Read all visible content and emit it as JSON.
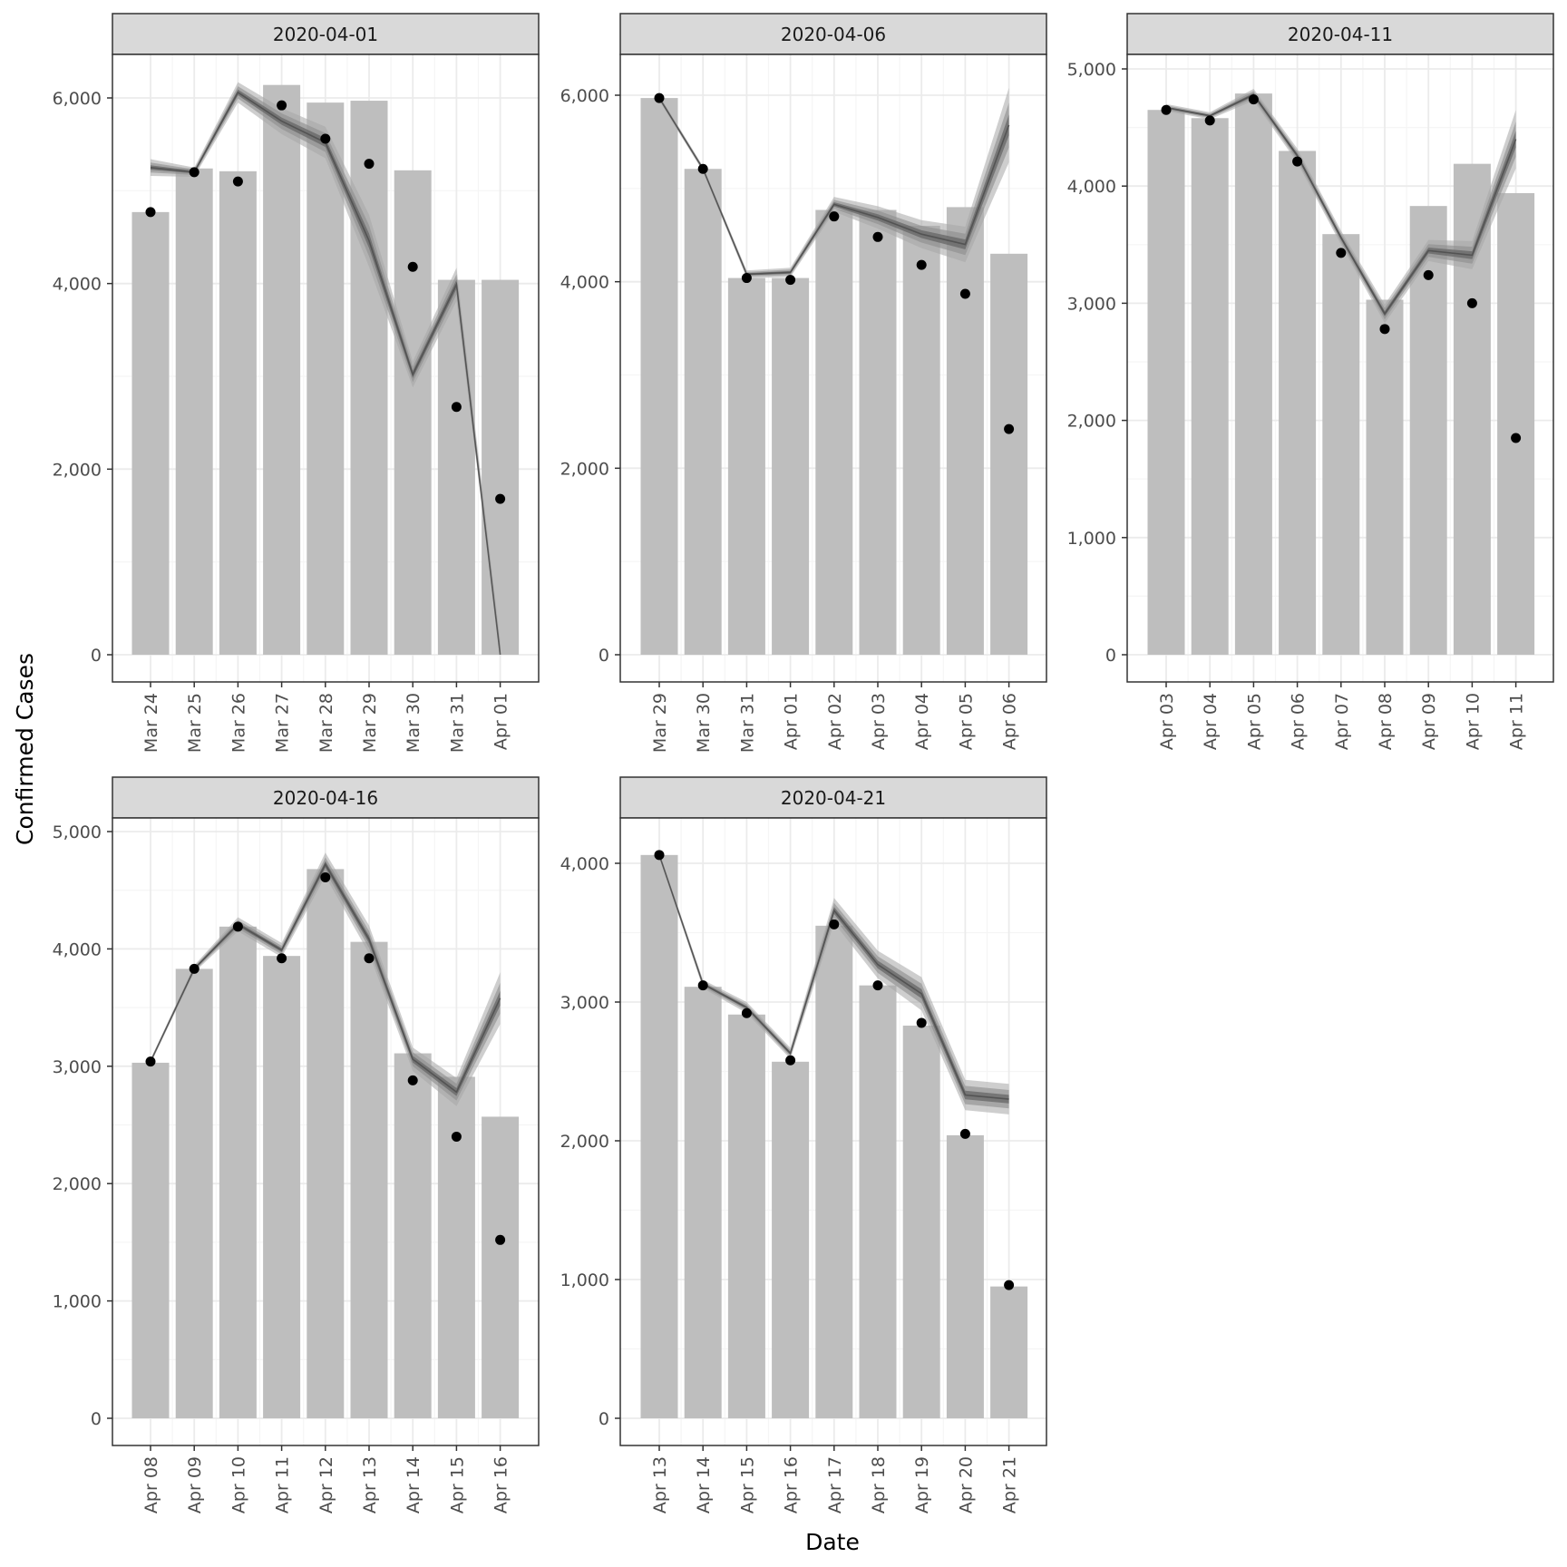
{
  "colors": {
    "bar": "#bebebe",
    "point": "#000000",
    "line": "#4d4d4d",
    "band_outer": "#a6a6a6",
    "band_mid": "#8c8c8c",
    "band_inner": "#666666",
    "strip_fill": "#d9d9d9",
    "grid_major": "#ebebeb",
    "grid_minor": "#f5f5f5",
    "panel_border": "#333333"
  },
  "chart_data": {
    "type": "bar",
    "xlabel": "Date",
    "ylabel": "Confirmed Cases",
    "layout": "facet-grid 3 columns",
    "legend": "none",
    "grid": true,
    "panels": [
      {
        "strip": "2020-04-01",
        "ylim": [
          0,
          6500
        ],
        "yticks": [
          0,
          2000,
          4000,
          6000
        ],
        "ytick_labels": [
          "0",
          "2,000",
          "4,000",
          "6,000"
        ],
        "categories": [
          "Mar 24",
          "Mar 25",
          "Mar 26",
          "Mar 27",
          "Mar 28",
          "Mar 29",
          "Mar 30",
          "Mar 31",
          "Apr 01"
        ],
        "bars": [
          4770,
          5240,
          5210,
          6140,
          5950,
          5970,
          5220,
          4040,
          4040
        ],
        "points": [
          4770,
          5200,
          5100,
          5920,
          5560,
          5290,
          4180,
          2670,
          1680
        ],
        "line": [
          5250,
          5200,
          6060,
          5750,
          5520,
          4460,
          3020,
          3990,
          0
        ],
        "band": [
          90,
          50,
          110,
          140,
          170,
          280,
          140,
          180,
          150
        ]
      },
      {
        "strip": "2020-04-06",
        "ylim": [
          0,
          6400
        ],
        "yticks": [
          0,
          2000,
          4000,
          6000
        ],
        "ytick_labels": [
          "0",
          "2,000",
          "4,000",
          "6,000"
        ],
        "categories": [
          "Mar 29",
          "Mar 30",
          "Mar 31",
          "Apr 01",
          "Apr 02",
          "Apr 03",
          "Apr 04",
          "Apr 05",
          "Apr 06"
        ],
        "bars": [
          5970,
          5210,
          4040,
          4040,
          4770,
          4770,
          4600,
          4800,
          4300
        ],
        "points": [
          5970,
          5210,
          4040,
          4020,
          4700,
          4480,
          4180,
          3870,
          2420
        ],
        "line": [
          5970,
          5210,
          4080,
          4100,
          4830,
          4690,
          4510,
          4400,
          5680
        ],
        "band": [
          30,
          30,
          40,
          50,
          80,
          120,
          150,
          190,
          400
        ]
      },
      {
        "strip": "2020-04-11",
        "ylim": [
          0,
          5100
        ],
        "yticks": [
          0,
          1000,
          2000,
          3000,
          4000,
          5000
        ],
        "ytick_labels": [
          "0",
          "1,000",
          "2,000",
          "3,000",
          "4,000",
          "5,000"
        ],
        "categories": [
          "Apr 03",
          "Apr 04",
          "Apr 05",
          "Apr 06",
          "Apr 07",
          "Apr 08",
          "Apr 09",
          "Apr 10",
          "Apr 11"
        ],
        "bars": [
          4650,
          4580,
          4790,
          4300,
          3590,
          3030,
          3830,
          4190,
          3940
        ],
        "points": [
          4650,
          4560,
          4740,
          4210,
          3430,
          2780,
          3240,
          3000,
          1850
        ],
        "line": [
          4670,
          4600,
          4780,
          4260,
          3560,
          2910,
          3450,
          3410,
          4400
        ],
        "band": [
          30,
          30,
          50,
          60,
          60,
          80,
          90,
          120,
          250
        ]
      },
      {
        "strip": "2020-04-16",
        "ylim": [
          0,
          5100
        ],
        "yticks": [
          0,
          1000,
          2000,
          3000,
          4000,
          5000
        ],
        "ytick_labels": [
          "0",
          "1,000",
          "2,000",
          "3,000",
          "4,000",
          "5,000"
        ],
        "categories": [
          "Apr 08",
          "Apr 09",
          "Apr 10",
          "Apr 11",
          "Apr 12",
          "Apr 13",
          "Apr 14",
          "Apr 15",
          "Apr 16"
        ],
        "bars": [
          3030,
          3830,
          4190,
          3940,
          4680,
          4060,
          3110,
          2910,
          2570
        ],
        "points": [
          3040,
          3830,
          4190,
          3920,
          4610,
          3920,
          2880,
          2400,
          1520
        ],
        "line": [
          3040,
          3830,
          4210,
          3990,
          4720,
          4080,
          3060,
          2780,
          3580
        ],
        "band": [
          20,
          30,
          60,
          60,
          100,
          120,
          100,
          120,
          220
        ]
      },
      {
        "strip": "2020-04-21",
        "ylim": [
          0,
          4300
        ],
        "yticks": [
          0,
          1000,
          2000,
          3000,
          4000
        ],
        "ytick_labels": [
          "0",
          "1,000",
          "2,000",
          "3,000",
          "4,000"
        ],
        "categories": [
          "Apr 13",
          "Apr 14",
          "Apr 15",
          "Apr 16",
          "Apr 17",
          "Apr 18",
          "Apr 19",
          "Apr 20",
          "Apr 21"
        ],
        "bars": [
          4060,
          3110,
          2910,
          2570,
          3550,
          3120,
          2830,
          2040,
          950
        ],
        "points": [
          4060,
          3120,
          2920,
          2580,
          3560,
          3120,
          2850,
          2050,
          960
        ],
        "line": [
          4060,
          3130,
          2960,
          2630,
          3660,
          3270,
          3060,
          2330,
          2300
        ],
        "band": [
          20,
          30,
          40,
          40,
          90,
          100,
          120,
          110,
          110
        ]
      }
    ]
  }
}
